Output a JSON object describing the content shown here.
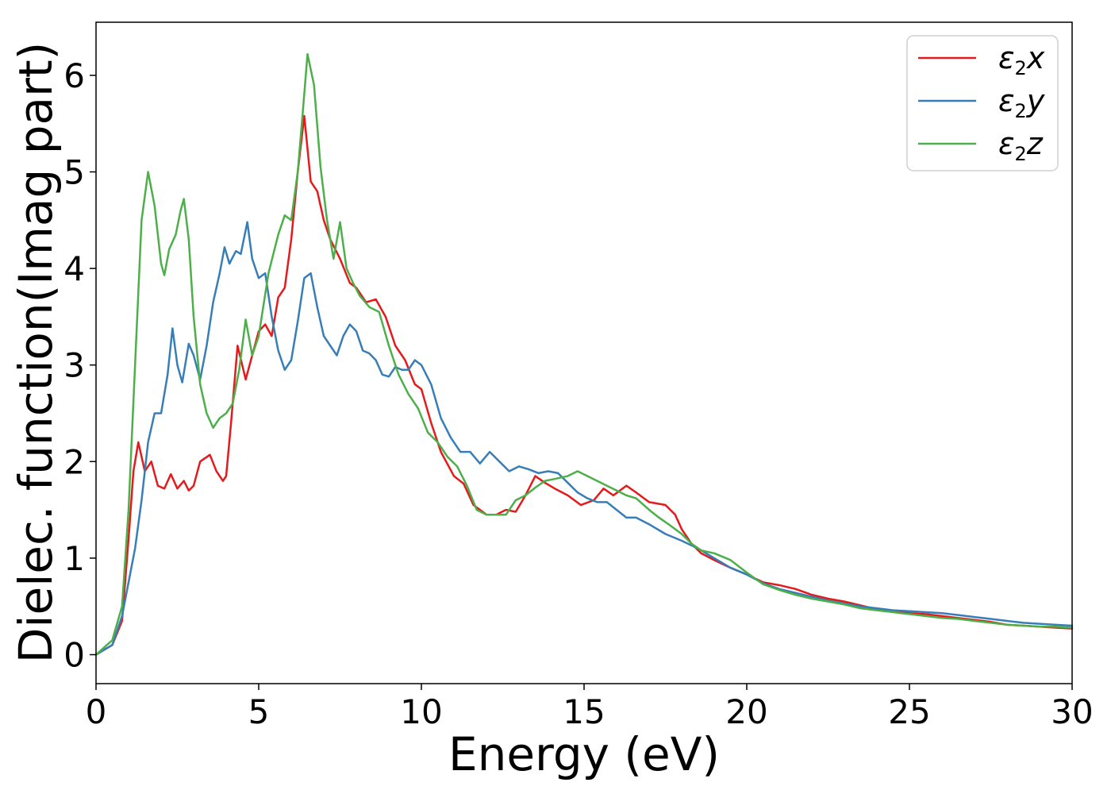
{
  "chart_data": {
    "type": "line",
    "title": "",
    "xlabel": "Energy (eV)",
    "ylabel": "Dielec. function(Imag part)",
    "xlim": [
      0,
      30
    ],
    "ylim": [
      -0.3,
      6.55
    ],
    "xticks": [
      0,
      5,
      10,
      15,
      20,
      25,
      30
    ],
    "xtick_labels": [
      "0",
      "5",
      "10",
      "15",
      "20",
      "25",
      "30"
    ],
    "yticks": [
      0,
      1,
      2,
      3,
      4,
      5,
      6
    ],
    "ytick_labels": [
      "0",
      "1",
      "2",
      "3",
      "4",
      "5",
      "6"
    ],
    "grid": false,
    "legend_position": "top-right",
    "series": [
      {
        "name": "ε2x",
        "legend_symbol": "ε",
        "legend_sub": "2",
        "legend_var": "x",
        "color": "#e41a1c",
        "points": [
          [
            0,
            0
          ],
          [
            0.5,
            0.1
          ],
          [
            0.8,
            0.35
          ],
          [
            1.0,
            1.2
          ],
          [
            1.15,
            1.9
          ],
          [
            1.3,
            2.2
          ],
          [
            1.5,
            1.9
          ],
          [
            1.7,
            2.0
          ],
          [
            1.9,
            1.75
          ],
          [
            2.1,
            1.72
          ],
          [
            2.3,
            1.87
          ],
          [
            2.5,
            1.72
          ],
          [
            2.7,
            1.8
          ],
          [
            2.85,
            1.7
          ],
          [
            3.0,
            1.75
          ],
          [
            3.2,
            2.0
          ],
          [
            3.5,
            2.07
          ],
          [
            3.7,
            1.9
          ],
          [
            3.9,
            1.8
          ],
          [
            4.0,
            1.85
          ],
          [
            4.15,
            2.4
          ],
          [
            4.35,
            3.2
          ],
          [
            4.6,
            2.85
          ],
          [
            4.8,
            3.1
          ],
          [
            5.0,
            3.35
          ],
          [
            5.2,
            3.42
          ],
          [
            5.4,
            3.3
          ],
          [
            5.6,
            3.7
          ],
          [
            5.8,
            3.8
          ],
          [
            6.0,
            4.3
          ],
          [
            6.2,
            5.0
          ],
          [
            6.4,
            5.58
          ],
          [
            6.6,
            4.9
          ],
          [
            6.8,
            4.8
          ],
          [
            7.0,
            4.5
          ],
          [
            7.2,
            4.3
          ],
          [
            7.5,
            4.1
          ],
          [
            7.8,
            3.85
          ],
          [
            8.0,
            3.8
          ],
          [
            8.3,
            3.65
          ],
          [
            8.6,
            3.68
          ],
          [
            8.9,
            3.5
          ],
          [
            9.2,
            3.2
          ],
          [
            9.5,
            3.05
          ],
          [
            9.8,
            2.8
          ],
          [
            10.0,
            2.75
          ],
          [
            10.3,
            2.4
          ],
          [
            10.6,
            2.1
          ],
          [
            11.0,
            1.85
          ],
          [
            11.3,
            1.77
          ],
          [
            11.6,
            1.55
          ],
          [
            12.0,
            1.45
          ],
          [
            12.3,
            1.45
          ],
          [
            12.6,
            1.5
          ],
          [
            12.9,
            1.48
          ],
          [
            13.2,
            1.65
          ],
          [
            13.5,
            1.85
          ],
          [
            13.8,
            1.78
          ],
          [
            14.1,
            1.72
          ],
          [
            14.5,
            1.65
          ],
          [
            14.9,
            1.55
          ],
          [
            15.3,
            1.6
          ],
          [
            15.6,
            1.72
          ],
          [
            15.9,
            1.65
          ],
          [
            16.3,
            1.75
          ],
          [
            16.6,
            1.68
          ],
          [
            17.0,
            1.58
          ],
          [
            17.5,
            1.55
          ],
          [
            17.8,
            1.45
          ],
          [
            18.0,
            1.3
          ],
          [
            18.3,
            1.15
          ],
          [
            18.6,
            1.05
          ],
          [
            19.0,
            0.98
          ],
          [
            19.5,
            0.9
          ],
          [
            20.0,
            0.83
          ],
          [
            20.5,
            0.75
          ],
          [
            21.0,
            0.72
          ],
          [
            21.5,
            0.68
          ],
          [
            22.0,
            0.62
          ],
          [
            22.5,
            0.58
          ],
          [
            23.0,
            0.55
          ],
          [
            23.5,
            0.51
          ],
          [
            24.0,
            0.47
          ],
          [
            24.5,
            0.45
          ],
          [
            25.0,
            0.43
          ],
          [
            25.5,
            0.42
          ],
          [
            26.0,
            0.4
          ],
          [
            26.5,
            0.38
          ],
          [
            27.0,
            0.36
          ],
          [
            27.5,
            0.34
          ],
          [
            28.0,
            0.31
          ],
          [
            28.5,
            0.3
          ],
          [
            29.0,
            0.29
          ],
          [
            29.5,
            0.28
          ],
          [
            30.0,
            0.27
          ]
        ]
      },
      {
        "name": "ε2y",
        "legend_symbol": "ε",
        "legend_sub": "2",
        "legend_var": "y",
        "color": "#377eb8",
        "points": [
          [
            0,
            0
          ],
          [
            0.5,
            0.1
          ],
          [
            0.8,
            0.4
          ],
          [
            1.0,
            0.75
          ],
          [
            1.2,
            1.1
          ],
          [
            1.4,
            1.6
          ],
          [
            1.6,
            2.2
          ],
          [
            1.8,
            2.5
          ],
          [
            2.0,
            2.5
          ],
          [
            2.2,
            2.9
          ],
          [
            2.35,
            3.38
          ],
          [
            2.5,
            3.0
          ],
          [
            2.65,
            2.82
          ],
          [
            2.85,
            3.22
          ],
          [
            3.0,
            3.1
          ],
          [
            3.2,
            2.85
          ],
          [
            3.4,
            3.2
          ],
          [
            3.6,
            3.65
          ],
          [
            3.8,
            3.95
          ],
          [
            3.95,
            4.22
          ],
          [
            4.1,
            4.05
          ],
          [
            4.3,
            4.18
          ],
          [
            4.45,
            4.15
          ],
          [
            4.65,
            4.48
          ],
          [
            4.8,
            4.1
          ],
          [
            5.0,
            3.9
          ],
          [
            5.2,
            3.95
          ],
          [
            5.4,
            3.5
          ],
          [
            5.6,
            3.15
          ],
          [
            5.8,
            2.95
          ],
          [
            6.0,
            3.05
          ],
          [
            6.2,
            3.45
          ],
          [
            6.4,
            3.9
          ],
          [
            6.6,
            3.95
          ],
          [
            6.8,
            3.6
          ],
          [
            7.0,
            3.3
          ],
          [
            7.2,
            3.2
          ],
          [
            7.4,
            3.1
          ],
          [
            7.6,
            3.3
          ],
          [
            7.8,
            3.42
          ],
          [
            8.0,
            3.35
          ],
          [
            8.2,
            3.15
          ],
          [
            8.4,
            3.12
          ],
          [
            8.6,
            3.05
          ],
          [
            8.8,
            2.9
          ],
          [
            9.0,
            2.88
          ],
          [
            9.2,
            2.98
          ],
          [
            9.4,
            2.95
          ],
          [
            9.6,
            2.95
          ],
          [
            9.8,
            3.05
          ],
          [
            10.0,
            3.0
          ],
          [
            10.3,
            2.8
          ],
          [
            10.6,
            2.45
          ],
          [
            10.9,
            2.25
          ],
          [
            11.2,
            2.1
          ],
          [
            11.5,
            2.1
          ],
          [
            11.8,
            1.98
          ],
          [
            12.1,
            2.1
          ],
          [
            12.4,
            2.0
          ],
          [
            12.7,
            1.9
          ],
          [
            13.0,
            1.95
          ],
          [
            13.3,
            1.92
          ],
          [
            13.6,
            1.88
          ],
          [
            13.9,
            1.9
          ],
          [
            14.2,
            1.88
          ],
          [
            14.5,
            1.78
          ],
          [
            14.8,
            1.68
          ],
          [
            15.1,
            1.62
          ],
          [
            15.4,
            1.58
          ],
          [
            15.7,
            1.58
          ],
          [
            16.0,
            1.5
          ],
          [
            16.3,
            1.42
          ],
          [
            16.6,
            1.42
          ],
          [
            17.0,
            1.35
          ],
          [
            17.5,
            1.25
          ],
          [
            18.0,
            1.18
          ],
          [
            18.5,
            1.1
          ],
          [
            19.0,
            1.0
          ],
          [
            19.5,
            0.9
          ],
          [
            20.0,
            0.83
          ],
          [
            20.5,
            0.74
          ],
          [
            21.0,
            0.68
          ],
          [
            21.5,
            0.64
          ],
          [
            22.0,
            0.6
          ],
          [
            22.5,
            0.56
          ],
          [
            23.0,
            0.53
          ],
          [
            23.5,
            0.5
          ],
          [
            24.0,
            0.48
          ],
          [
            24.5,
            0.46
          ],
          [
            25.0,
            0.45
          ],
          [
            25.5,
            0.44
          ],
          [
            26.0,
            0.43
          ],
          [
            26.5,
            0.41
          ],
          [
            27.0,
            0.39
          ],
          [
            27.5,
            0.37
          ],
          [
            28.0,
            0.35
          ],
          [
            28.5,
            0.33
          ],
          [
            29.0,
            0.32
          ],
          [
            29.5,
            0.31
          ],
          [
            30.0,
            0.3
          ]
        ]
      },
      {
        "name": "ε2z",
        "legend_symbol": "ε",
        "legend_sub": "2",
        "legend_var": "z",
        "color": "#4daf4a",
        "points": [
          [
            0,
            0
          ],
          [
            0.5,
            0.15
          ],
          [
            0.8,
            0.5
          ],
          [
            1.0,
            1.5
          ],
          [
            1.2,
            3.0
          ],
          [
            1.4,
            4.5
          ],
          [
            1.6,
            5.0
          ],
          [
            1.8,
            4.65
          ],
          [
            2.0,
            4.05
          ],
          [
            2.1,
            3.93
          ],
          [
            2.25,
            4.2
          ],
          [
            2.45,
            4.35
          ],
          [
            2.6,
            4.6
          ],
          [
            2.7,
            4.72
          ],
          [
            2.85,
            4.3
          ],
          [
            3.0,
            3.5
          ],
          [
            3.2,
            2.8
          ],
          [
            3.4,
            2.5
          ],
          [
            3.6,
            2.35
          ],
          [
            3.8,
            2.45
          ],
          [
            4.0,
            2.5
          ],
          [
            4.2,
            2.6
          ],
          [
            4.4,
            2.95
          ],
          [
            4.6,
            3.47
          ],
          [
            4.8,
            3.1
          ],
          [
            5.0,
            3.3
          ],
          [
            5.3,
            3.95
          ],
          [
            5.6,
            4.35
          ],
          [
            5.8,
            4.55
          ],
          [
            6.0,
            4.5
          ],
          [
            6.2,
            5.0
          ],
          [
            6.35,
            5.6
          ],
          [
            6.5,
            6.22
          ],
          [
            6.7,
            5.9
          ],
          [
            6.9,
            5.05
          ],
          [
            7.1,
            4.5
          ],
          [
            7.3,
            4.1
          ],
          [
            7.5,
            4.48
          ],
          [
            7.7,
            4.0
          ],
          [
            7.9,
            3.85
          ],
          [
            8.1,
            3.72
          ],
          [
            8.4,
            3.6
          ],
          [
            8.7,
            3.55
          ],
          [
            9.0,
            3.2
          ],
          [
            9.3,
            2.9
          ],
          [
            9.6,
            2.7
          ],
          [
            9.9,
            2.55
          ],
          [
            10.2,
            2.3
          ],
          [
            10.5,
            2.2
          ],
          [
            10.8,
            2.05
          ],
          [
            11.1,
            1.95
          ],
          [
            11.4,
            1.75
          ],
          [
            11.7,
            1.5
          ],
          [
            12.0,
            1.45
          ],
          [
            12.3,
            1.45
          ],
          [
            12.6,
            1.45
          ],
          [
            12.9,
            1.6
          ],
          [
            13.2,
            1.65
          ],
          [
            13.5,
            1.73
          ],
          [
            13.8,
            1.8
          ],
          [
            14.1,
            1.82
          ],
          [
            14.5,
            1.85
          ],
          [
            14.8,
            1.9
          ],
          [
            15.1,
            1.85
          ],
          [
            15.4,
            1.8
          ],
          [
            15.7,
            1.75
          ],
          [
            16.0,
            1.7
          ],
          [
            16.3,
            1.65
          ],
          [
            16.6,
            1.62
          ],
          [
            17.0,
            1.5
          ],
          [
            17.3,
            1.42
          ],
          [
            17.6,
            1.35
          ],
          [
            18.0,
            1.25
          ],
          [
            18.3,
            1.15
          ],
          [
            18.6,
            1.08
          ],
          [
            19.0,
            1.05
          ],
          [
            19.5,
            0.98
          ],
          [
            20.0,
            0.85
          ],
          [
            20.5,
            0.73
          ],
          [
            21.0,
            0.67
          ],
          [
            21.5,
            0.62
          ],
          [
            22.0,
            0.58
          ],
          [
            22.5,
            0.55
          ],
          [
            23.0,
            0.52
          ],
          [
            23.5,
            0.48
          ],
          [
            24.0,
            0.46
          ],
          [
            24.5,
            0.44
          ],
          [
            25.0,
            0.42
          ],
          [
            25.5,
            0.4
          ],
          [
            26.0,
            0.38
          ],
          [
            26.5,
            0.37
          ],
          [
            27.0,
            0.35
          ],
          [
            27.5,
            0.33
          ],
          [
            28.0,
            0.31
          ],
          [
            28.5,
            0.3
          ],
          [
            29.0,
            0.29
          ],
          [
            29.5,
            0.29
          ],
          [
            30.0,
            0.28
          ]
        ]
      }
    ]
  }
}
